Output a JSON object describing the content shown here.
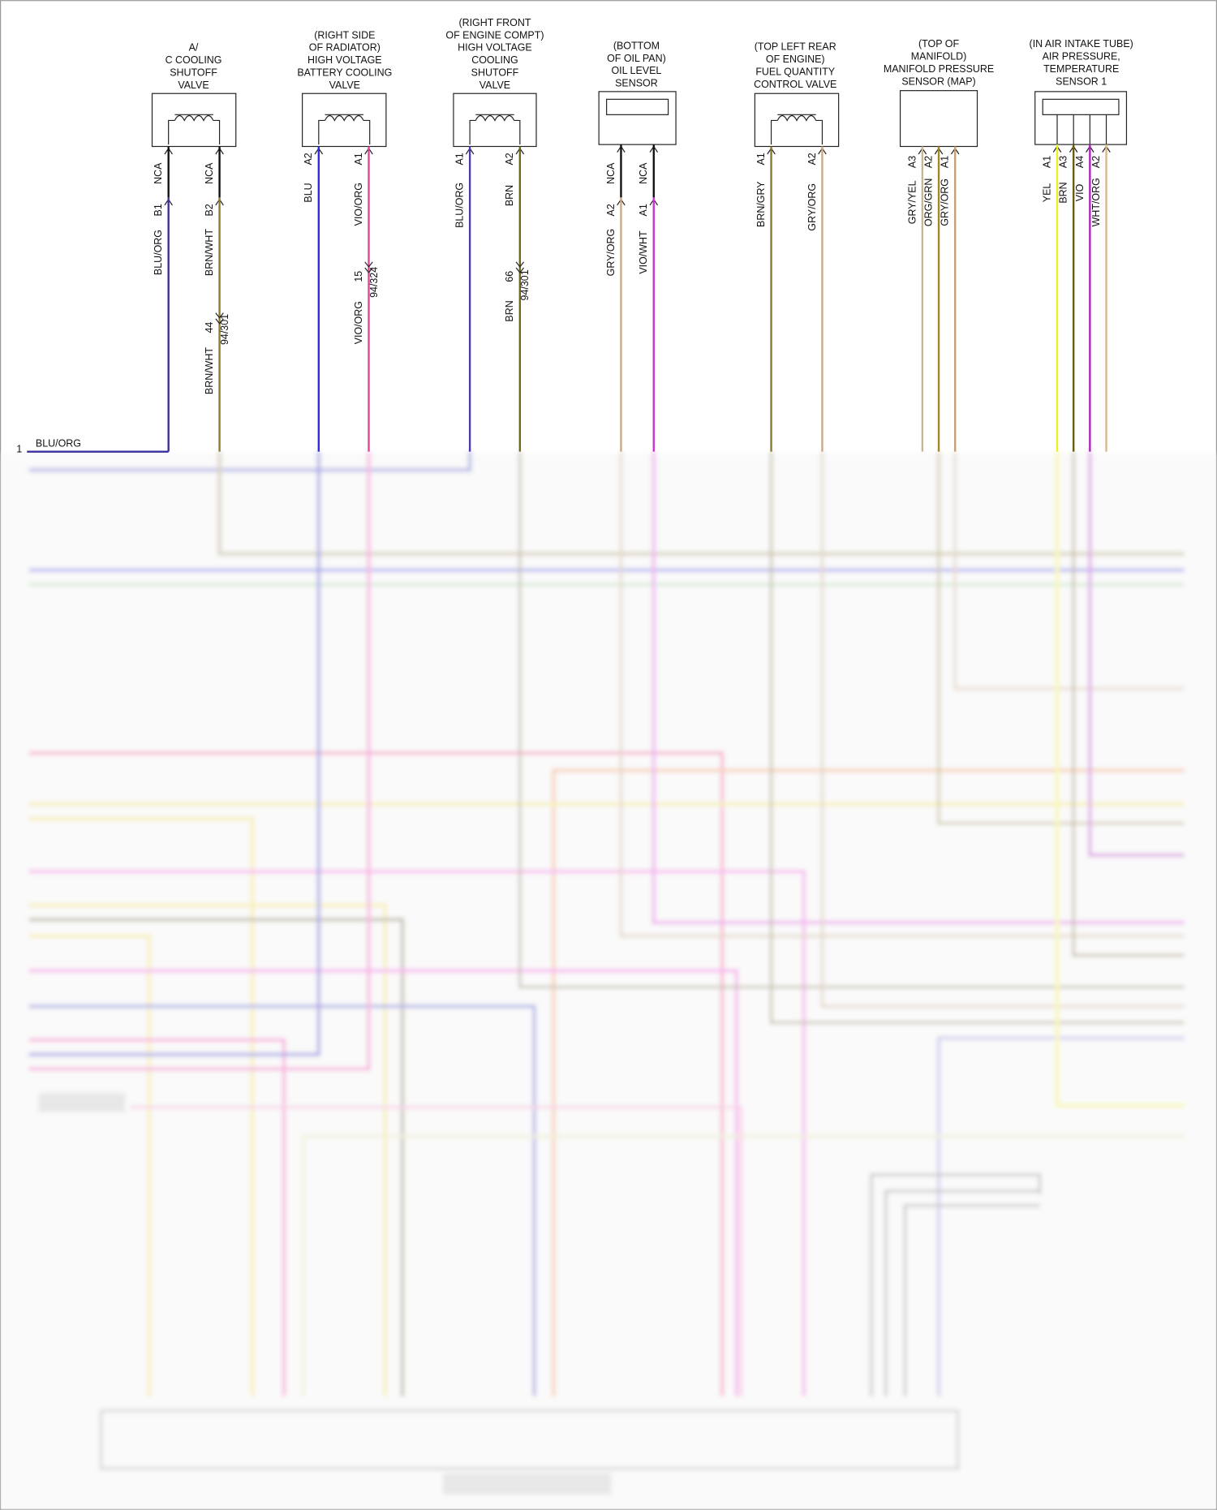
{
  "header": {
    "left_wire": {
      "number": "1",
      "wire": "BLU/ORG"
    }
  },
  "components": [
    {
      "label": [
        "A/",
        "C COOLING",
        "SHUTOFF",
        "VALVE"
      ],
      "pins": [
        {
          "terminal": "NCA",
          "pin": "B1",
          "wire": "BLU/ORG"
        },
        {
          "terminal": "NCA",
          "pin": "B2",
          "wire": "BRN/WHT",
          "splice": {
            "number": "44",
            "connector": "94/301",
            "wire_after": "BRN/WHT"
          }
        }
      ]
    },
    {
      "label": [
        "(RIGHT SIDE",
        "OF RADIATOR)",
        "HIGH VOLTAGE",
        "BATTERY COOLING",
        "VALVE"
      ],
      "pins": [
        {
          "pin": "A2",
          "wire": "BLU"
        },
        {
          "pin": "A1",
          "wire": "VIO/ORG",
          "splice": {
            "number": "15",
            "connector": "94/324",
            "wire_after": "VIO/ORG"
          }
        }
      ]
    },
    {
      "label": [
        "(RIGHT FRONT",
        "OF ENGINE COMPT)",
        "HIGH VOLTAGE",
        "COOLING",
        "SHUTOFF",
        "VALVE"
      ],
      "pins": [
        {
          "pin": "A1",
          "wire": "BLU/ORG"
        },
        {
          "pin": "A2",
          "wire": "BRN",
          "splice": {
            "number": "66",
            "connector": "94/301",
            "wire_after": "BRN"
          }
        }
      ]
    },
    {
      "label": [
        "(BOTTOM",
        "OF OIL PAN)",
        "OIL LEVEL",
        "SENSOR"
      ],
      "pins": [
        {
          "terminal": "NCA",
          "pin": "A2",
          "wire": "GRY/ORG"
        },
        {
          "terminal": "NCA",
          "pin": "A1",
          "wire": "VIO/WHT"
        }
      ]
    },
    {
      "label": [
        "(TOP LEFT REAR",
        "OF ENGINE)",
        "FUEL QUANTITY",
        "CONTROL VALVE"
      ],
      "pins": [
        {
          "pin": "A1",
          "wire": "BRN/GRY"
        },
        {
          "pin": "A2",
          "wire": "GRY/ORG"
        }
      ]
    },
    {
      "label": [
        "(TOP OF",
        "MANIFOLD)",
        "MANIFOLD PRESSURE",
        "SENSOR (MAP)"
      ],
      "pins": [
        {
          "pin": "A3",
          "wire": "GRY/YEL"
        },
        {
          "pin": "A2",
          "wire": "ORG/GRN"
        },
        {
          "pin": "A1",
          "wire": "GRY/ORG"
        }
      ]
    },
    {
      "label": [
        "(IN AIR INTAKE TUBE)",
        "AIR PRESSURE,",
        "TEMPERATURE",
        "SENSOR 1"
      ],
      "pins": [
        {
          "pin": "A1",
          "wire": "YEL"
        },
        {
          "pin": "A3",
          "wire": "BRN"
        },
        {
          "pin": "A4",
          "wire": "VIO"
        },
        {
          "pin": "A2",
          "wire": "WHT/ORG"
        }
      ]
    }
  ]
}
